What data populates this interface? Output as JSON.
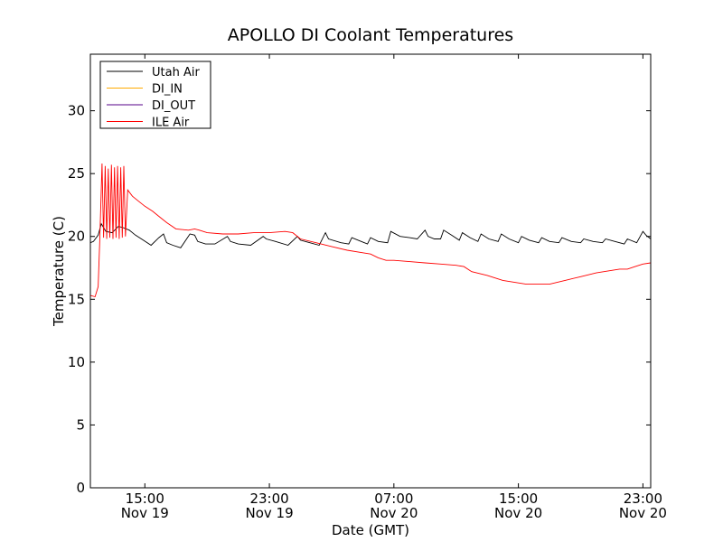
{
  "chart_data": {
    "type": "line",
    "title": "APOLLO DI Coolant Temperatures",
    "xlabel": "Date (GMT)",
    "ylabel": "Temperature (C)",
    "xlim": [
      11.5,
      47.5
    ],
    "ylim": [
      0,
      34.5
    ],
    "legend_position": "top-left",
    "yticks": [
      {
        "value": 0,
        "label": "0"
      },
      {
        "value": 5,
        "label": "5"
      },
      {
        "value": 10,
        "label": "10"
      },
      {
        "value": 15,
        "label": "15"
      },
      {
        "value": 20,
        "label": "20"
      },
      {
        "value": 25,
        "label": "25"
      },
      {
        "value": 30,
        "label": "30"
      }
    ],
    "xticks": [
      {
        "value": 15,
        "time": "15:00",
        "date": "Nov 19"
      },
      {
        "value": 23,
        "time": "23:00",
        "date": "Nov 19"
      },
      {
        "value": 31,
        "time": "07:00",
        "date": "Nov 20"
      },
      {
        "value": 39,
        "time": "15:00",
        "date": "Nov 20"
      },
      {
        "value": 47,
        "time": "23:00",
        "date": "Nov 20"
      }
    ],
    "series": [
      {
        "name": "Utah Air",
        "color": "#000000",
        "x": [
          11.5,
          11.7,
          12.0,
          12.2,
          12.5,
          12.9,
          13.3,
          13.6,
          14.0,
          14.4,
          14.9,
          15.4,
          15.9,
          16.2,
          16.4,
          16.8,
          17.3,
          17.9,
          18.2,
          18.4,
          18.9,
          19.5,
          20.3,
          20.5,
          21.0,
          21.8,
          22.6,
          22.8,
          23.4,
          24.2,
          24.8,
          25.0,
          25.6,
          26.2,
          26.6,
          26.8,
          27.6,
          28.1,
          28.3,
          28.9,
          29.3,
          29.5,
          30.0,
          30.6,
          30.8,
          31.4,
          32.0,
          32.5,
          33.0,
          33.2,
          33.6,
          34.0,
          34.2,
          34.7,
          35.2,
          35.4,
          35.9,
          36.4,
          36.6,
          37.1,
          37.7,
          37.9,
          38.4,
          39.0,
          39.2,
          39.7,
          40.3,
          40.5,
          41.0,
          41.6,
          41.8,
          42.4,
          43.0,
          43.2,
          43.8,
          44.4,
          44.6,
          45.2,
          45.8,
          46.0,
          46.6,
          47.0,
          47.2,
          47.5
        ],
        "values": [
          19.5,
          19.6,
          20.1,
          21.0,
          20.4,
          20.3,
          20.8,
          20.7,
          20.5,
          20.1,
          19.7,
          19.3,
          19.9,
          20.2,
          19.5,
          19.3,
          19.1,
          20.2,
          20.1,
          19.6,
          19.4,
          19.4,
          20.0,
          19.6,
          19.4,
          19.3,
          20.0,
          19.8,
          19.6,
          19.3,
          20.0,
          19.7,
          19.5,
          19.3,
          20.3,
          19.8,
          19.5,
          19.4,
          19.9,
          19.6,
          19.4,
          19.9,
          19.6,
          19.5,
          20.4,
          20.0,
          19.9,
          19.8,
          20.5,
          20.0,
          19.8,
          19.8,
          20.5,
          20.1,
          19.7,
          20.3,
          19.9,
          19.6,
          20.2,
          19.8,
          19.6,
          20.2,
          19.8,
          19.5,
          20.0,
          19.7,
          19.5,
          19.9,
          19.6,
          19.5,
          19.9,
          19.6,
          19.5,
          19.8,
          19.6,
          19.5,
          19.8,
          19.6,
          19.4,
          19.8,
          19.5,
          20.4,
          20.1,
          19.8
        ]
      },
      {
        "name": "DI_IN",
        "color": "#ffaa00",
        "x": [],
        "values": []
      },
      {
        "name": "DI_OUT",
        "color": "#550088",
        "x": [],
        "values": []
      },
      {
        "name": "ILE Air",
        "color": "#ff0000",
        "x": [
          11.5,
          11.8,
          12.0,
          12.1,
          12.25,
          12.35,
          12.45,
          12.55,
          12.65,
          12.75,
          12.85,
          12.95,
          13.05,
          13.15,
          13.25,
          13.35,
          13.45,
          13.55,
          13.65,
          13.75,
          13.9,
          14.2,
          14.6,
          15.0,
          15.5,
          16.0,
          16.4,
          17.0,
          17.8,
          18.2,
          18.5,
          19.0,
          20.0,
          21.0,
          22.0,
          23.0,
          24.0,
          24.5,
          25.0,
          26.0,
          27.0,
          28.0,
          29.0,
          29.5,
          30.0,
          30.5,
          31.0,
          32.0,
          33.0,
          34.0,
          35.0,
          35.5,
          36.0,
          37.0,
          38.0,
          39.0,
          39.5,
          40.0,
          41.0,
          42.0,
          43.0,
          44.0,
          45.0,
          45.5,
          46.0,
          46.5,
          47.0,
          47.5
        ],
        "values": [
          15.3,
          15.2,
          16.0,
          19.5,
          25.8,
          19.9,
          25.6,
          19.8,
          25.4,
          19.9,
          25.7,
          19.8,
          25.5,
          19.9,
          25.6,
          19.8,
          25.5,
          19.9,
          25.6,
          20.0,
          23.7,
          23.2,
          22.8,
          22.4,
          22.0,
          21.5,
          21.1,
          20.6,
          20.5,
          20.6,
          20.5,
          20.3,
          20.2,
          20.2,
          20.3,
          20.3,
          20.4,
          20.3,
          19.8,
          19.5,
          19.2,
          18.9,
          18.7,
          18.6,
          18.3,
          18.1,
          18.1,
          18.0,
          17.9,
          17.8,
          17.7,
          17.6,
          17.2,
          16.9,
          16.5,
          16.3,
          16.2,
          16.2,
          16.2,
          16.5,
          16.8,
          17.1,
          17.3,
          17.4,
          17.4,
          17.6,
          17.8,
          17.9
        ]
      }
    ]
  }
}
